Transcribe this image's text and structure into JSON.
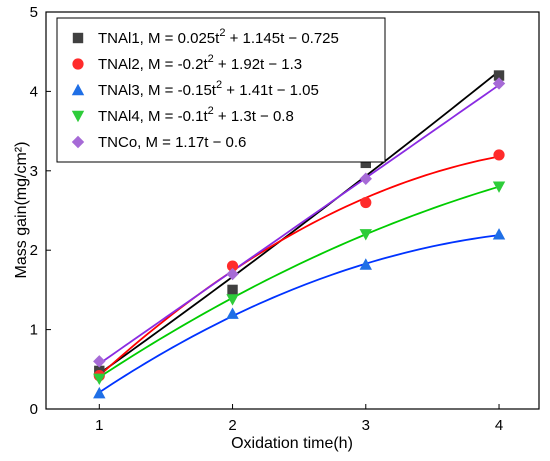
{
  "chart_data": {
    "type": "scatter",
    "xlabel": "Oxidation time(h)",
    "ylabel": "Mass gain(mg/cm²)",
    "xlim": [
      0.6,
      4.3
    ],
    "ylim": [
      0,
      5
    ],
    "x_ticks": [
      "1",
      "2",
      "3",
      "4"
    ],
    "y_ticks": [
      "0",
      "1",
      "2",
      "3",
      "4",
      "5"
    ],
    "grid": false,
    "legend_position": "top-left",
    "series": [
      {
        "name": "TNAl1, M = 0.025t² + 1.145t − 0.725",
        "legend_main": "TNAl1, M = 0.025t",
        "legend_rest": " + 1.145t − 0.725",
        "marker": "square",
        "color": "#404040",
        "line_color": "#000000",
        "x": [
          1,
          2,
          3,
          4
        ],
        "values": [
          0.48,
          1.5,
          3.1,
          4.2
        ],
        "fit": [
          0.025,
          1.145,
          -0.725
        ]
      },
      {
        "name": "TNAl2, M = -0.2t² + 1.92t − 1.3",
        "legend_main": "TNAl2, M = -0.2t",
        "legend_rest": " + 1.92t − 1.3",
        "marker": "circle",
        "color": "#ff2b2b",
        "line_color": "#ff0000",
        "x": [
          1,
          2,
          3,
          4
        ],
        "values": [
          0.42,
          1.8,
          2.6,
          3.2
        ],
        "fit": [
          -0.2,
          1.92,
          -1.3
        ]
      },
      {
        "name": "TNAl3, M = -0.15t² + 1.41t − 1.05",
        "legend_main": "TNAl3, M = -0.15t",
        "legend_rest": " + 1.41t − 1.05",
        "marker": "triangle-up",
        "color": "#1f6fe6",
        "line_color": "#0033ff",
        "x": [
          1,
          2,
          3,
          4
        ],
        "values": [
          0.2,
          1.2,
          1.82,
          2.2
        ],
        "fit": [
          -0.15,
          1.41,
          -1.05
        ]
      },
      {
        "name": "TNAl4, M = -0.1t² + 1.3t − 0.8",
        "legend_main": "TNAl4, M = -0.1t",
        "legend_rest": " + 1.3t − 0.8",
        "marker": "triangle-down",
        "color": "#2ecc3a",
        "line_color": "#00cc00",
        "x": [
          1,
          2,
          3,
          4
        ],
        "values": [
          0.38,
          1.38,
          2.2,
          2.8
        ],
        "fit": [
          -0.1,
          1.3,
          -0.8
        ]
      },
      {
        "name": "TNCo, M = 1.17t − 0.6",
        "legend_main": "TNCo, M = 1.17t − 0.6",
        "legend_rest": "",
        "marker": "diamond",
        "color": "#a66ad6",
        "line_color": "#8a2be2",
        "x": [
          1,
          2,
          3,
          4
        ],
        "values": [
          0.6,
          1.7,
          2.9,
          4.1
        ],
        "fit": [
          0,
          1.17,
          -0.6
        ]
      }
    ]
  }
}
